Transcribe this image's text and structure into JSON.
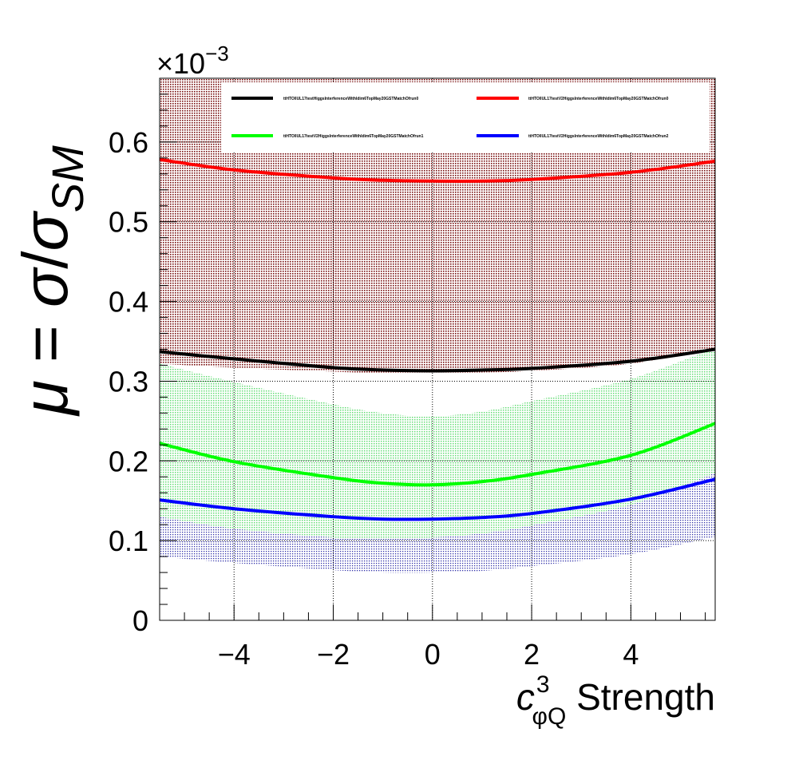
{
  "chart_data": {
    "type": "line",
    "title": "",
    "xlabel": {
      "main": "c",
      "superscript": "3",
      "subscript": "φQ",
      "suffix": " Strength"
    },
    "ylabel": {
      "mu": "μ",
      "equals": " = ",
      "sigma": "σ",
      "slash": "/",
      "sigma2": "σ",
      "subscript": "SM"
    },
    "y_multiplier": {
      "prefix": "×10",
      "exponent": "−3"
    },
    "xlim": [
      -5.5,
      5.7
    ],
    "ylim": [
      0,
      0.00068
    ],
    "x_ticks": [
      -4,
      -2,
      0,
      2,
      4
    ],
    "x_tick_labels": [
      "−4",
      "−2",
      "0",
      "2",
      "4"
    ],
    "y_ticks": [
      0,
      0.0001,
      0.0002,
      0.0003,
      0.0004,
      0.0005,
      0.0006
    ],
    "y_tick_labels": [
      "0",
      "0.1",
      "0.2",
      "0.3",
      "0.4",
      "0.5",
      "0.6"
    ],
    "grid": true,
    "legend_position": "top",
    "series": [
      {
        "name": "ttHTOllUL17testHiggsInterferenceWithIdim6TopMay20GSTMatchOfrun0",
        "color": "#000000",
        "band_color": "#7a1010",
        "x": [
          -5.5,
          -4,
          -2,
          -1,
          0,
          1,
          2,
          4,
          5.7
        ],
        "y": [
          0.000337,
          0.000328,
          0.000317,
          0.000314,
          0.000313,
          0.000314,
          0.000316,
          0.000325,
          0.00034
        ],
        "band_lower": [
          0.000322,
          0.000317,
          0.000312,
          0.00031,
          0.00031,
          0.000311,
          0.000313,
          0.000322,
          0.000342
        ],
        "band_upper": [
          0.000685,
          0.000685,
          0.000685,
          0.000685,
          0.000685,
          0.000685,
          0.000685,
          0.000685,
          0.000685
        ]
      },
      {
        "name": "ttHTOllUL17testV2HiggsInterferenceWithIdim6TopMay20GSTMatchOfrun0",
        "color": "#ff0000",
        "band_color": "#ff9999",
        "x": [
          -5.5,
          -4,
          -2,
          -1,
          0,
          1,
          2,
          4,
          5.7
        ],
        "y": [
          0.000578,
          0.000565,
          0.000555,
          0.000552,
          0.000551,
          0.000551,
          0.000553,
          0.000562,
          0.000576
        ],
        "band_lower": [
          0.000587,
          0.000587,
          0.000587,
          0.000587,
          0.000587,
          0.000587,
          0.000587,
          0.000587,
          0.000587
        ],
        "band_upper": [
          0.000685,
          0.000685,
          0.000685,
          0.000685,
          0.000685,
          0.000685,
          0.000685,
          0.000685,
          0.000685
        ]
      },
      {
        "name": "ttHTOllUL17testV2HiggsInterferenceWithIdim6TopMay20GSTMatchOfrun1",
        "color": "#00ff00",
        "band_color": "#66dd77",
        "x": [
          -5.5,
          -4,
          -2,
          -1,
          0,
          1,
          2,
          4,
          5.7
        ],
        "y": [
          0.000222,
          0.000199,
          0.000179,
          0.000172,
          0.00017,
          0.000174,
          0.000183,
          0.000207,
          0.000247
        ],
        "band_lower": [
          0.00013,
          0.000115,
          0.000104,
          0.000102,
          0.000104,
          0.000109,
          0.000119,
          0.000145,
          0.000185
        ],
        "band_upper": [
          0.000322,
          0.000299,
          0.000271,
          0.00026,
          0.000256,
          0.000262,
          0.000275,
          0.000303,
          0.000342
        ]
      },
      {
        "name": "ttHTOllUL17testV2HiggsInterferenceWithIdim6TopMay20GSTMatchOfrun2",
        "color": "#0000ff",
        "band_color": "#3333aa",
        "x": [
          -5.5,
          -4,
          -2,
          -1,
          0,
          1,
          2,
          4,
          5.7
        ],
        "y": [
          0.000151,
          0.00014,
          0.00013,
          0.000127,
          0.000127,
          0.000129,
          0.000134,
          0.000152,
          0.000177
        ],
        "band_lower": [
          8e-05,
          7.2e-05,
          6.3e-05,
          6e-05,
          6e-05,
          6.2e-05,
          6.8e-05,
          8.3e-05,
          0.000105
        ],
        "band_upper": [
          0.000226,
          0.000212,
          0.000197,
          0.000193,
          0.000193,
          0.000197,
          0.000205,
          0.000226,
          0.000255
        ]
      }
    ]
  }
}
